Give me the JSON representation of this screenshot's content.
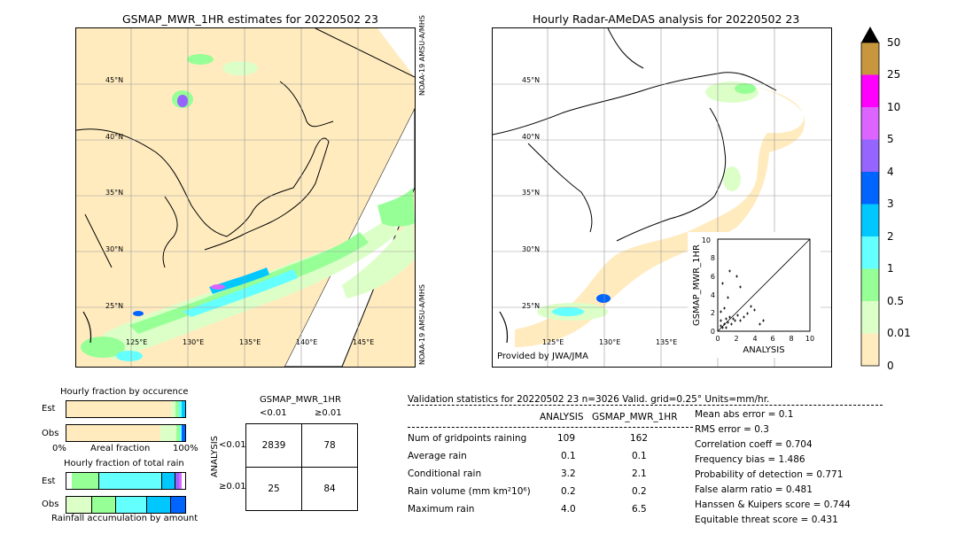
{
  "left_map": {
    "title": "GSMAP_MWR_1HR estimates for 20220502 23",
    "lat_labels": [
      "45°N",
      "40°N",
      "35°N",
      "30°N",
      "25°N"
    ],
    "lon_labels": [
      "125°E",
      "130°E",
      "135°E",
      "140°E",
      "145°E"
    ],
    "sat_label_top": "NOAA-19 AMSU-A/MHS",
    "sat_label_bottom": "NOAA-19 AMSU-A/MHS"
  },
  "right_map": {
    "title": "Hourly Radar-AMeDAS analysis for 20220502 23",
    "lat_labels": [
      "45°N",
      "40°N",
      "35°N",
      "30°N",
      "25°N"
    ],
    "lon_labels": [
      "125°E",
      "130°E",
      "135°E"
    ],
    "provider": "Provided by JWA/JMA",
    "scatter": {
      "ylabel": "GSMAP_MWR_1HR",
      "xlabel": "ANALYSIS",
      "ticks": [
        "0",
        "2",
        "4",
        "6",
        "8",
        "10"
      ],
      "top_tick": "10"
    }
  },
  "colorbar": {
    "labels": [
      "50",
      "25",
      "10",
      "5",
      "4",
      "3",
      "2",
      "1",
      "0.5",
      "0.01",
      "0"
    ],
    "colors": [
      "#c8963c",
      "#ff00ff",
      "#dc64ff",
      "#9664ff",
      "#0064ff",
      "#00c8ff",
      "#64ffff",
      "#96ff96",
      "#dcffc8",
      "#ffebbe"
    ]
  },
  "occurrence": {
    "title": "Hourly fraction by occurence",
    "row_est": "Est",
    "row_obs": "Obs",
    "axis_left": "0%",
    "axis_mid": "Areal fraction",
    "axis_right": "100%"
  },
  "total_rain": {
    "title": "Hourly fraction of total rain",
    "row_est": "Est",
    "row_obs": "Obs",
    "axis_label": "Rainfall accumulation by amount"
  },
  "contingency": {
    "title": "GSMAP_MWR_1HR",
    "col_lt": "<0.01",
    "col_ge": "≥0.01",
    "row_axis": "ANALYSIS",
    "row_lt": "<0.01",
    "row_ge": "≥0.01",
    "cells": [
      "2839",
      "78",
      "25",
      "84"
    ]
  },
  "validation": {
    "header": "Validation statistics for 20220502 23  n=3026 Valid. grid=0.25° Units=mm/hr.",
    "col_analysis": "ANALYSIS",
    "col_gsmap": "GSMAP_MWR_1HR",
    "rows": [
      {
        "label": "Num of gridpoints raining",
        "analysis": "109",
        "gsmap": "162"
      },
      {
        "label": "Average rain",
        "analysis": "0.1",
        "gsmap": "0.1"
      },
      {
        "label": "Conditional rain",
        "analysis": "3.2",
        "gsmap": "2.1"
      },
      {
        "label": "Rain volume (mm km²10⁶)",
        "analysis": "0.2",
        "gsmap": "0.2"
      },
      {
        "label": "Maximum rain",
        "analysis": "4.0",
        "gsmap": "6.5"
      }
    ],
    "scores": [
      "Mean abs error =    0.1",
      "RMS error =    0.3",
      "Correlation coeff =  0.704",
      "Frequency bias =  1.486",
      "Probability of detection =  0.771",
      "False alarm ratio =  0.481",
      "Hanssen & Kuipers score =  0.744",
      "Equitable threat score =  0.431"
    ]
  }
}
